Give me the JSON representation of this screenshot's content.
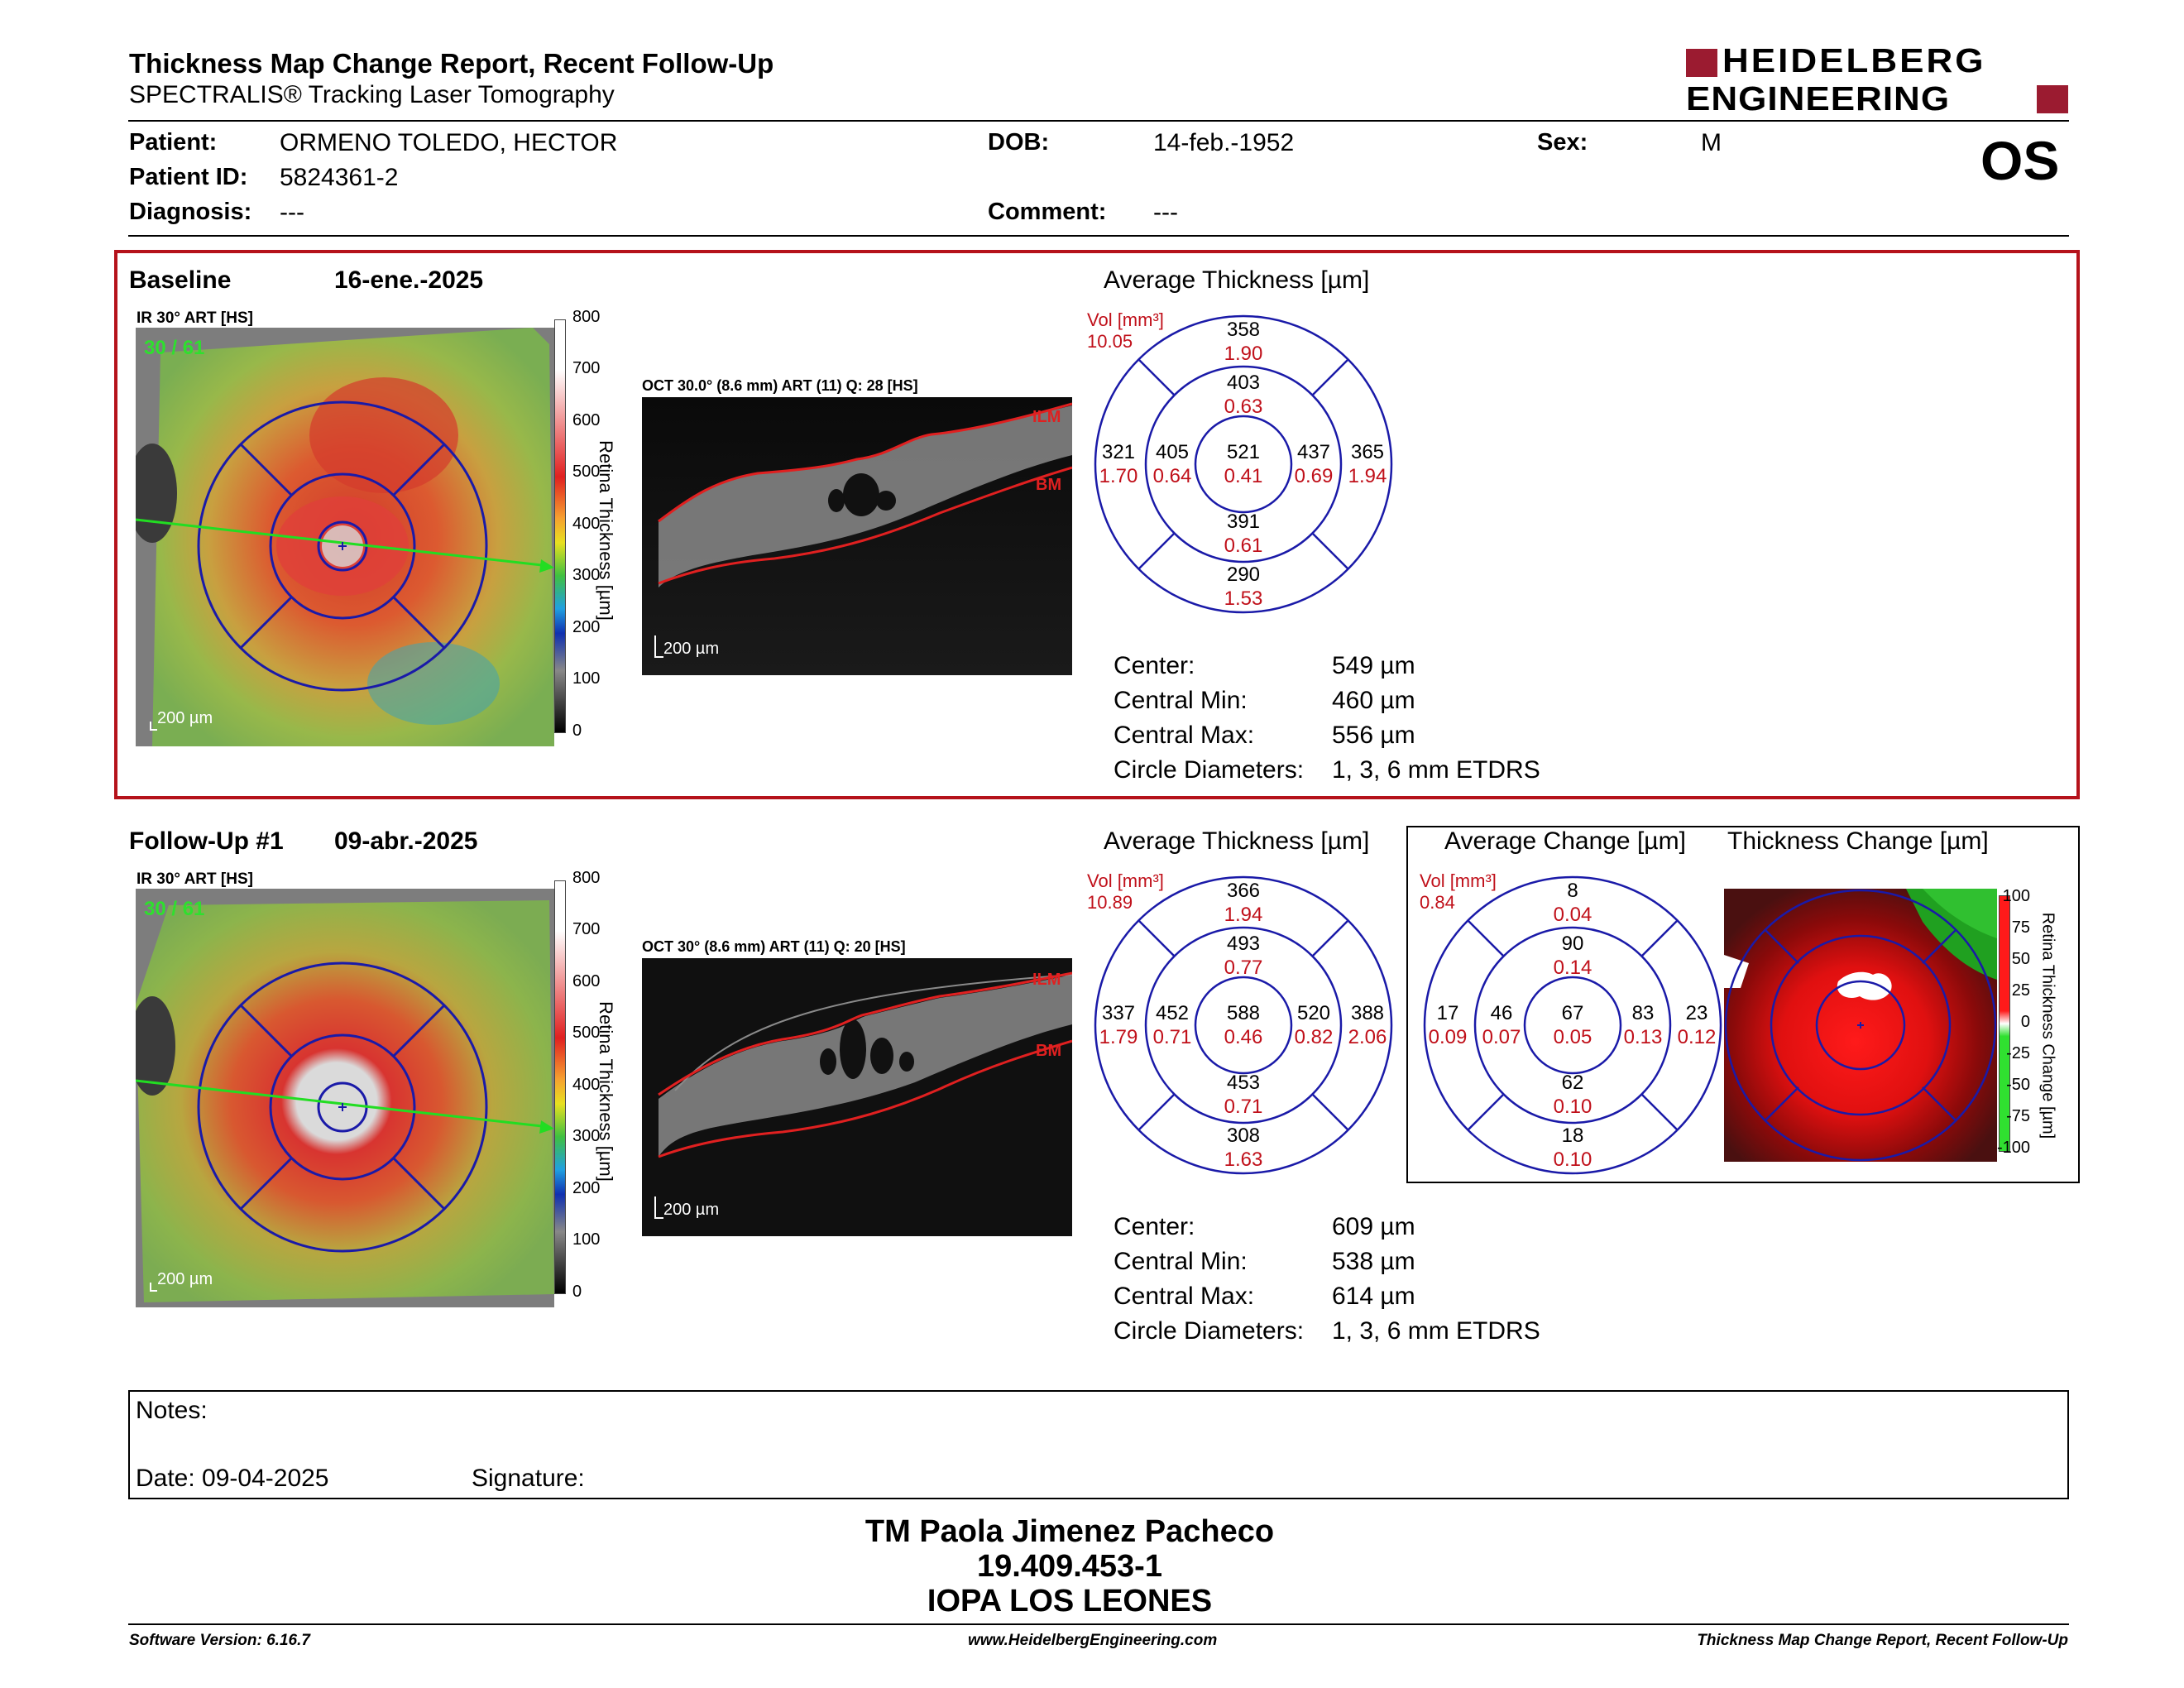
{
  "header": {
    "title": "Thickness Map Change Report, Recent Follow-Up",
    "subtitle": "SPECTRALIS® Tracking Laser Tomography",
    "logo_line1": "HEIDELBERG",
    "logo_line2": "ENGINEERING",
    "eye": "OS"
  },
  "patient": {
    "patient_label": "Patient:",
    "patient_value": "ORMENO TOLEDO, HECTOR",
    "id_label": "Patient ID:",
    "id_value": "5824361-2",
    "diagnosis_label": "Diagnosis:",
    "diagnosis_value": "---",
    "dob_label": "DOB:",
    "dob_value": "14-feb.-1952",
    "comment_label": "Comment:",
    "comment_value": "---",
    "sex_label": "Sex:",
    "sex_value": "M"
  },
  "baseline": {
    "label": "Baseline",
    "date": "16-ene.-2025",
    "ir_label": "IR 30° ART [HS]",
    "ir_frames": "30 / 61",
    "scale": "200 µm",
    "colorbar_ticks": [
      "800",
      "700",
      "600",
      "500",
      "400",
      "300",
      "200",
      "100",
      "0"
    ],
    "colorbar_title": "Retina Thickness [µm]",
    "oct_label": "OCT 30.0° (8.6 mm) ART (11) Q: 28 [HS]",
    "oct_scale": "200 µm",
    "ilm": "ILM",
    "bm": "BM",
    "avg_title": "Average Thickness [µm]",
    "vol_label": "Vol [mm³]",
    "vol_value": "10.05",
    "grid": {
      "outer_sup": [
        "358",
        "1.90"
      ],
      "inner_sup": [
        "403",
        "0.63"
      ],
      "outer_temp": [
        "321",
        "1.70"
      ],
      "inner_temp": [
        "405",
        "0.64"
      ],
      "center": [
        "521",
        "0.41"
      ],
      "inner_nas": [
        "437",
        "0.69"
      ],
      "outer_nas": [
        "365",
        "1.94"
      ],
      "inner_inf": [
        "391",
        "0.61"
      ],
      "outer_inf": [
        "290",
        "1.53"
      ]
    },
    "stats": [
      {
        "label": "Center:",
        "value": "549 µm"
      },
      {
        "label": "Central Min:",
        "value": "460 µm"
      },
      {
        "label": "Central Max:",
        "value": "556 µm"
      },
      {
        "label": "Circle Diameters:",
        "value": "1, 3, 6 mm ETDRS"
      }
    ]
  },
  "followup": {
    "label": "Follow-Up #1",
    "date": "09-abr.-2025",
    "ir_label": "IR 30° ART [HS]",
    "ir_frames": "30 / 61",
    "scale": "200 µm",
    "colorbar_ticks": [
      "800",
      "700",
      "600",
      "500",
      "400",
      "300",
      "200",
      "100",
      "0"
    ],
    "colorbar_title": "Retina Thickness [µm]",
    "oct_label": "OCT 30° (8.6 mm) ART (11) Q: 20 [HS]",
    "oct_scale": "200 µm",
    "ilm": "ILM",
    "bm": "BM",
    "avg_title": "Average Thickness [µm]",
    "vol_label": "Vol [mm³]",
    "vol_value": "10.89",
    "grid": {
      "outer_sup": [
        "366",
        "1.94"
      ],
      "inner_sup": [
        "493",
        "0.77"
      ],
      "outer_temp": [
        "337",
        "1.79"
      ],
      "inner_temp": [
        "452",
        "0.71"
      ],
      "center": [
        "588",
        "0.46"
      ],
      "inner_nas": [
        "520",
        "0.82"
      ],
      "outer_nas": [
        "388",
        "2.06"
      ],
      "inner_inf": [
        "453",
        "0.71"
      ],
      "outer_inf": [
        "308",
        "1.63"
      ]
    },
    "stats": [
      {
        "label": "Center:",
        "value": "609 µm"
      },
      {
        "label": "Central Min:",
        "value": "538 µm"
      },
      {
        "label": "Central Max:",
        "value": "614 µm"
      },
      {
        "label": "Circle Diameters:",
        "value": "1, 3, 6 mm ETDRS"
      }
    ]
  },
  "change": {
    "avg_title": "Average Change [µm]",
    "map_title": "Thickness Change [µm]",
    "vol_label": "Vol [mm³]",
    "vol_value": "0.84",
    "grid": {
      "outer_sup": [
        "8",
        "0.04"
      ],
      "inner_sup": [
        "90",
        "0.14"
      ],
      "outer_temp": [
        "17",
        "0.09"
      ],
      "inner_temp": [
        "46",
        "0.07"
      ],
      "center": [
        "67",
        "0.05"
      ],
      "inner_nas": [
        "83",
        "0.13"
      ],
      "outer_nas": [
        "23",
        "0.12"
      ],
      "inner_inf": [
        "62",
        "0.10"
      ],
      "outer_inf": [
        "18",
        "0.10"
      ]
    },
    "colorbar_ticks": [
      "100",
      "75",
      "50",
      "25",
      "0",
      "-25",
      "-50",
      "-75",
      "-100"
    ],
    "colorbar_title": "Retina Thickness Change [µm]"
  },
  "notes": {
    "notes_label": "Notes:",
    "date_label": "Date: 09-04-2025",
    "signature_label": "Signature:"
  },
  "signer": {
    "name": "TM Paola Jimenez Pacheco",
    "rut": "19.409.453-1",
    "org": "IOPA LOS LEONES"
  },
  "footer": {
    "software": "Software Version: 6.16.7",
    "website": "www.HeidelbergEngineering.com",
    "report": "Thickness Map Change Report, Recent Follow-Up"
  },
  "colors": {
    "red_accent": "#b5121b",
    "grid_blue": "#1a1aa8",
    "value_red": "#c0101a",
    "logo_red": "#9b1b30"
  }
}
